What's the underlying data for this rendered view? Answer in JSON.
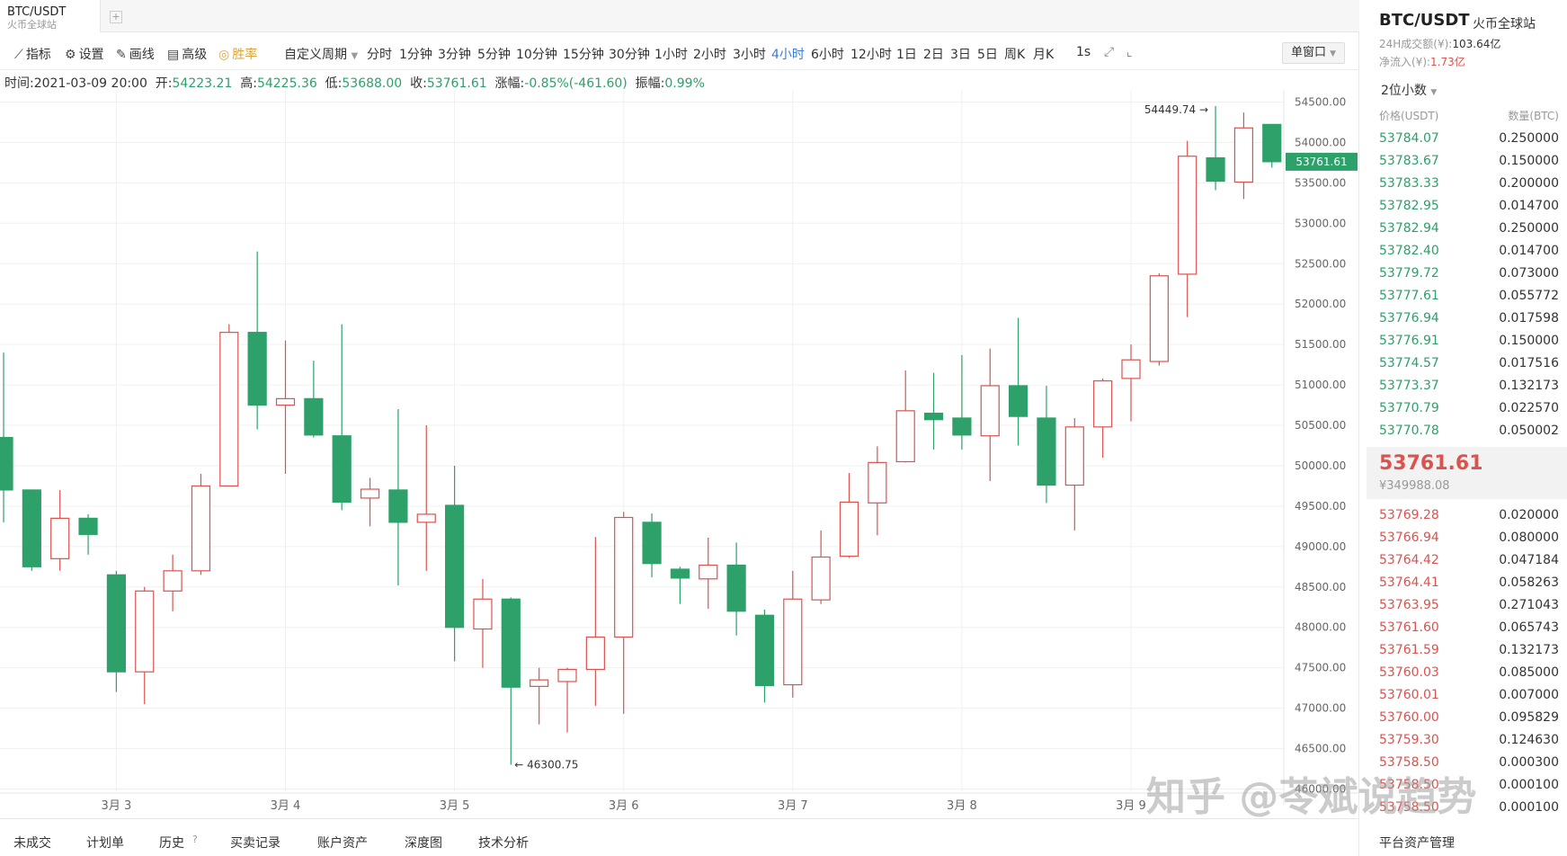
{
  "tab": {
    "symbol": "BTC/USDT",
    "exchange": "火币全球站",
    "add_label": "+"
  },
  "toolbar": {
    "indicators": "指标",
    "settings": "设置",
    "draw": "画线",
    "advanced": "高级",
    "winrate": "胜率",
    "custom_period": "自定义周期",
    "periods": [
      "分时",
      "1分钟",
      "3分钟",
      "5分钟",
      "10分钟",
      "15分钟",
      "30分钟",
      "1小时",
      "2小时",
      "3小时",
      "4小时",
      "6小时",
      "12小时",
      "1日",
      "2日",
      "3日",
      "5日",
      "周K",
      "月K"
    ],
    "active_period": "4小时",
    "one_s": "1s",
    "window": "单窗口"
  },
  "info": {
    "time_label": "时间:",
    "time": "2021-03-09 20:00",
    "open_label": "开:",
    "open": "54223.21",
    "high_label": "高:",
    "high": "54225.36",
    "low_label": "低:",
    "low": "53688.00",
    "close_label": "收:",
    "close": "53761.61",
    "change_label": "涨幅:",
    "change": "-0.85%(-461.60)",
    "amp_label": "振幅:",
    "amp": "0.99%"
  },
  "chart_data": {
    "type": "candlestick",
    "y_ticks": [
      46000,
      46500,
      47000,
      47500,
      48000,
      48500,
      49000,
      49500,
      50000,
      50500,
      51000,
      51500,
      52000,
      52500,
      53000,
      53500,
      54000,
      54500
    ],
    "ylim": [
      45950,
      54650
    ],
    "x_labels": [
      {
        "label": "3月 3",
        "index": 4
      },
      {
        "label": "3月 4",
        "index": 10
      },
      {
        "label": "3月 5",
        "index": 16
      },
      {
        "label": "3月 6",
        "index": 22
      },
      {
        "label": "3月 7",
        "index": 28
      },
      {
        "label": "3月 8",
        "index": 34
      },
      {
        "label": "3月 9",
        "index": 40
      }
    ],
    "candles": [
      [
        50350,
        49700,
        51400,
        49300
      ],
      [
        49700,
        48750,
        49400,
        48700
      ],
      [
        48850,
        49350,
        49700,
        48700
      ],
      [
        49350,
        49150,
        49400,
        48900
      ],
      [
        48650,
        47450,
        48700,
        47200
      ],
      [
        47450,
        48450,
        48500,
        47050
      ],
      [
        48450,
        48700,
        48900,
        48200
      ],
      [
        48700,
        49750,
        49900,
        48650
      ],
      [
        49750,
        51650,
        51750,
        49750
      ],
      [
        51650,
        50750,
        52650,
        50450
      ],
      [
        50750,
        50830,
        51550,
        49900
      ],
      [
        50830,
        50380,
        51300,
        50350
      ],
      [
        50370,
        49550,
        51750,
        49450
      ],
      [
        49600,
        49710,
        49850,
        49250
      ],
      [
        49700,
        49300,
        50700,
        48520
      ],
      [
        49300,
        49400,
        50500,
        48700
      ],
      [
        49510,
        48000,
        50000,
        47580
      ],
      [
        47980,
        48350,
        48600,
        47500
      ],
      [
        48350,
        47260,
        48370,
        46300
      ],
      [
        47270,
        47350,
        47500,
        46800
      ],
      [
        47330,
        47480,
        47500,
        46700
      ],
      [
        47480,
        47880,
        49120,
        47030
      ],
      [
        47880,
        49360,
        49430,
        46930
      ],
      [
        49300,
        48790,
        49410,
        48620
      ],
      [
        48720,
        48610,
        48750,
        48290
      ],
      [
        48600,
        48770,
        49110,
        48230
      ],
      [
        48770,
        48200,
        49050,
        47900
      ],
      [
        48150,
        47280,
        48220,
        47070
      ],
      [
        47290,
        48350,
        48700,
        47130
      ],
      [
        48340,
        48870,
        49200,
        48290
      ],
      [
        48880,
        49550,
        49910,
        48860
      ],
      [
        49540,
        50040,
        50240,
        49140
      ],
      [
        50050,
        50680,
        51180,
        50040
      ],
      [
        50650,
        50570,
        51150,
        50200
      ],
      [
        50590,
        50380,
        51370,
        50200
      ],
      [
        50370,
        50990,
        51450,
        49810
      ],
      [
        50990,
        50610,
        51830,
        50250
      ],
      [
        50590,
        49760,
        50990,
        49540
      ],
      [
        49760,
        50480,
        50590,
        49200
      ],
      [
        50480,
        51050,
        51080,
        50100
      ],
      [
        51080,
        51310,
        51500,
        50550
      ],
      [
        51290,
        52350,
        52380,
        51240
      ],
      [
        52370,
        53830,
        54020,
        51840
      ],
      [
        53810,
        53520,
        54450,
        53410
      ],
      [
        53510,
        54180,
        54370,
        53300
      ],
      [
        54223.21,
        53761.61,
        54225.36,
        53688
      ]
    ],
    "annotations": {
      "high": "54449.74 →",
      "low": "← 46300.75"
    },
    "last_price": "53761.61",
    "axis_unit_note": "",
    "up_color": "#d9534f",
    "down_color": "#2ea06a"
  },
  "bottom_tabs": [
    "未成交",
    "计划单",
    "历史",
    "买卖记录",
    "账户资产",
    "深度图",
    "技术分析"
  ],
  "side": {
    "symbol": "BTC/USDT",
    "exchange": "火币全球站",
    "vol_label": "24H成交额(¥):",
    "vol": "103.64亿",
    "flow_label": "净流入(¥):",
    "flow": "1.73亿",
    "decimals": "2位小数",
    "price_header": "价格(USDT)",
    "qty_header": "数量(BTC)",
    "bids": [
      [
        "53784.07",
        "0.250000"
      ],
      [
        "53783.67",
        "0.150000"
      ],
      [
        "53783.33",
        "0.200000"
      ],
      [
        "53782.95",
        "0.014700"
      ],
      [
        "53782.94",
        "0.250000"
      ],
      [
        "53782.40",
        "0.014700"
      ],
      [
        "53779.72",
        "0.073000"
      ],
      [
        "53777.61",
        "0.055772"
      ],
      [
        "53776.94",
        "0.017598"
      ],
      [
        "53776.91",
        "0.150000"
      ],
      [
        "53774.57",
        "0.017516"
      ],
      [
        "53773.37",
        "0.132173"
      ],
      [
        "53770.79",
        "0.022570"
      ],
      [
        "53770.78",
        "0.050002"
      ]
    ],
    "last": "53761.61",
    "last_cny": "¥349988.08",
    "asks": [
      [
        "53769.28",
        "0.020000"
      ],
      [
        "53766.94",
        "0.080000"
      ],
      [
        "53764.42",
        "0.047184"
      ],
      [
        "53764.41",
        "0.058263"
      ],
      [
        "53763.95",
        "0.271043"
      ],
      [
        "53761.60",
        "0.065743"
      ],
      [
        "53761.59",
        "0.132173"
      ],
      [
        "53760.03",
        "0.085000"
      ],
      [
        "53760.01",
        "0.007000"
      ],
      [
        "53760.00",
        "0.095829"
      ],
      [
        "53759.30",
        "0.124630"
      ],
      [
        "53758.50",
        "0.000300"
      ],
      [
        "53758.50",
        "0.000100"
      ],
      [
        "53758.50",
        "0.000100"
      ]
    ],
    "footer": "平台资产管理"
  },
  "watermark": "知乎 @苓斌说趋势"
}
